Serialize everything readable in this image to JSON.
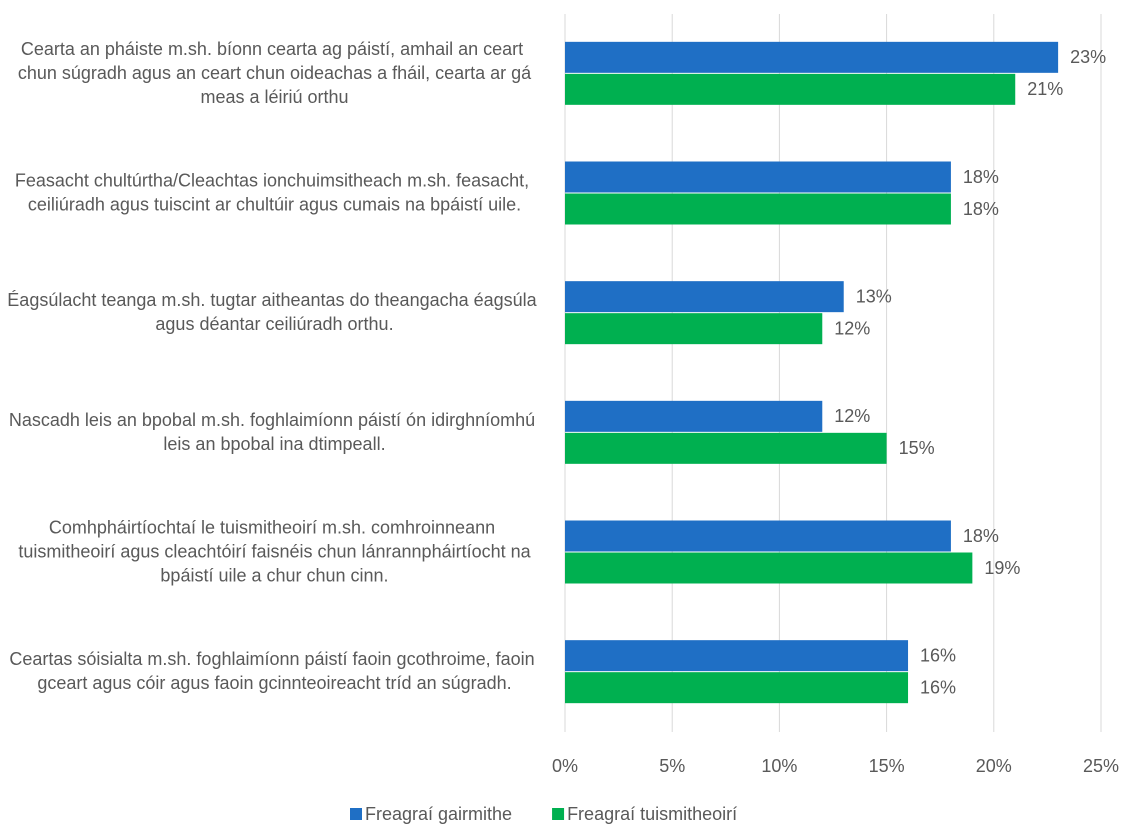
{
  "chart_data": {
    "type": "hbar",
    "categories": [
      "Cearta an pháiste m.sh. bíonn cearta ag páistí, amhail an ceart chun súgradh agus an ceart chun oideachas a fháil, cearta ar gá meas a léiriú orthu",
      "Feasacht chultúrtha/Cleachtas ionchuimsitheach m.sh. feasacht, ceiliúradh agus tuiscint ar chultúir agus cumais na bpáistí uile.",
      "Éagsúlacht teanga m.sh. tugtar aitheantas do theangacha éagsúla agus déantar ceiliúradh orthu.",
      "Nascadh leis an bpobal m.sh. foghlaimíonn páistí ón idirghníomhú leis an bpobal ina dtimpeall.",
      "Comhpháirtíochtaí le tuismitheoirí m.sh. comhroinneann tuismitheoirí agus cleachtóirí faisnéis chun lánrannpháirtíocht na bpáistí uile a chur chun cinn.",
      "Ceartas sóisialta m.sh. foghlaimíonn páistí faoin gcothroime, faoin gceart agus cóir agus faoin gcinnteoireacht tríd an súgradh."
    ],
    "series": [
      {
        "name": "Freagraí gairmithe",
        "color": "#1f6fc5",
        "values": [
          23,
          18,
          13,
          12,
          18,
          16
        ],
        "value_labels": [
          "23%",
          "18%",
          "13%",
          "12%",
          "18%",
          "16%"
        ]
      },
      {
        "name": "Freagraí tuismitheoirí",
        "color": "#00b050",
        "values": [
          21,
          18,
          12,
          15,
          19,
          16
        ],
        "value_labels": [
          "21%",
          "18%",
          "12%",
          "15%",
          "19%",
          "16%"
        ]
      }
    ],
    "xlim": [
      0,
      25
    ],
    "xticks": [
      {
        "value": 0,
        "label": "0%"
      },
      {
        "value": 5,
        "label": "5%"
      },
      {
        "value": 10,
        "label": "10%"
      },
      {
        "value": 15,
        "label": "15%"
      },
      {
        "value": 20,
        "label": "20%"
      },
      {
        "value": 25,
        "label": "25%"
      }
    ],
    "grid": true,
    "legend": "bottom"
  }
}
